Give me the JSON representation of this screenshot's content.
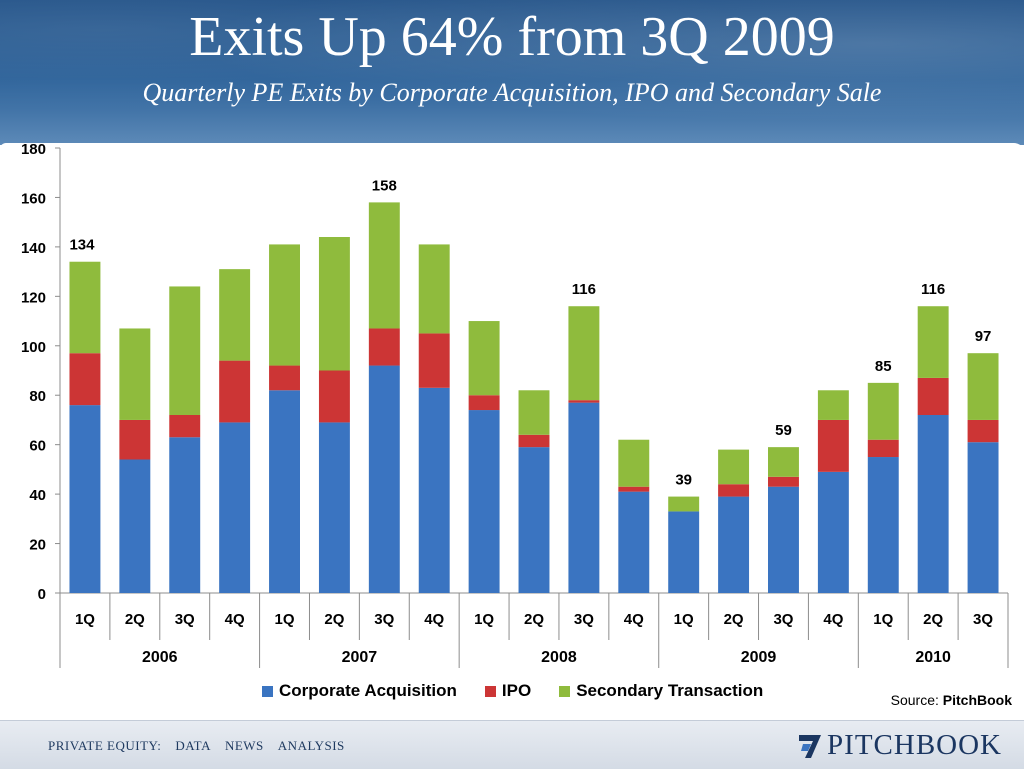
{
  "header": {
    "title": "Exits Up 64% from 3Q 2009",
    "subtitle": "Quarterly PE Exits by Corporate Acquisition, IPO and Secondary Sale"
  },
  "colors": {
    "corporate": "#3a74c1",
    "ipo": "#cc3535",
    "secondary": "#8fbb3d",
    "brand": "#1b3661"
  },
  "chart_data": {
    "type": "bar",
    "stacked": true,
    "title": "Exits Up 64% from 3Q 2009",
    "subtitle": "Quarterly PE Exits by Corporate Acquisition, IPO and Secondary Sale",
    "xlabel": "",
    "ylabel": "",
    "ylim": [
      0,
      180
    ],
    "yticks": [
      0,
      20,
      40,
      60,
      80,
      100,
      120,
      140,
      160,
      180
    ],
    "grid": false,
    "legend_position": "bottom",
    "categories": [
      "1Q",
      "2Q",
      "3Q",
      "4Q",
      "1Q",
      "2Q",
      "3Q",
      "4Q",
      "1Q",
      "2Q",
      "3Q",
      "4Q",
      "1Q",
      "2Q",
      "3Q",
      "4Q",
      "1Q",
      "2Q",
      "3Q"
    ],
    "year_groups": [
      {
        "label": "2006",
        "count": 4
      },
      {
        "label": "2007",
        "count": 4
      },
      {
        "label": "2008",
        "count": 4
      },
      {
        "label": "2009",
        "count": 4
      },
      {
        "label": "2010",
        "count": 3
      }
    ],
    "series": [
      {
        "name": "Corporate Acquisition",
        "values": [
          76,
          54,
          63,
          69,
          82,
          69,
          92,
          83,
          74,
          59,
          77,
          41,
          33,
          39,
          43,
          49,
          55,
          72,
          61
        ]
      },
      {
        "name": "IPO",
        "values": [
          21,
          16,
          9,
          25,
          10,
          21,
          15,
          22,
          6,
          5,
          1,
          2,
          0,
          5,
          4,
          21,
          7,
          15,
          9
        ]
      },
      {
        "name": "Secondary Transaction",
        "values": [
          37,
          37,
          52,
          37,
          49,
          54,
          51,
          36,
          30,
          18,
          38,
          19,
          6,
          14,
          12,
          12,
          23,
          29,
          27
        ]
      }
    ],
    "data_labels": [
      {
        "index": 0,
        "text": "134"
      },
      {
        "index": 6,
        "text": "158"
      },
      {
        "index": 10,
        "text": "116"
      },
      {
        "index": 12,
        "text": "39"
      },
      {
        "index": 14,
        "text": "59"
      },
      {
        "index": 16,
        "text": "85"
      },
      {
        "index": 17,
        "text": "116"
      },
      {
        "index": 18,
        "text": "97"
      }
    ]
  },
  "source": {
    "label": "Source:",
    "name": "PitchBook"
  },
  "footer": {
    "nav": [
      "PRIVATE EQUITY:",
      "DATA",
      "NEWS",
      "ANALYSIS"
    ],
    "brand": "PITCHBOOK"
  }
}
